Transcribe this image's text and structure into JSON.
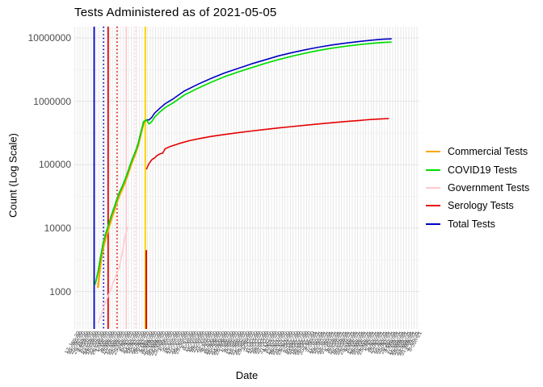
{
  "title": "Tests Administered as of 2021-05-05",
  "y_axis": {
    "label": "Count (Log Scale)",
    "tick_labels": [
      "10000000",
      "1000000",
      "100000",
      "10000",
      "1000"
    ],
    "tick_values": [
      10000000,
      1000000,
      100000,
      10000,
      1000
    ]
  },
  "x_axis": {
    "label": "Date",
    "start_date": "2020-01-17",
    "step_days": 4,
    "tick_count": 128,
    "label_format": "d-Mon-yy"
  },
  "legend": {
    "items": [
      {
        "label": "Commercial Tests",
        "color": "#ffa500",
        "key": "commercial-tests"
      },
      {
        "label": "COVID19 Tests",
        "color": "#00dd00",
        "key": "covid19-tests"
      },
      {
        "label": "Government Tests",
        "color": "#ffc8cf",
        "key": "government-tests"
      },
      {
        "label": "Serology Tests",
        "color": "#e60000",
        "key": "serology-tests"
      },
      {
        "label": "Total Tests",
        "color": "#0000c3",
        "key": "total-tests"
      }
    ]
  },
  "chart_data": {
    "type": "line",
    "title": "Tests Administered as of 2021-05-05",
    "xlabel": "Date",
    "ylabel": "Count (Log Scale)",
    "y_scale": "log10",
    "ylim": [
      260,
      15000000
    ],
    "grid": "on",
    "legend_position": "right",
    "y_major_breaks": [
      10000000,
      1000000,
      100000,
      10000,
      1000
    ],
    "series": [
      {
        "name": "Commercial Tests",
        "color": "#ffa500",
        "width": 2.4,
        "points": [
          [
            8,
            1150
          ],
          [
            9,
            2800
          ],
          [
            10,
            5000
          ],
          [
            11,
            7200
          ],
          [
            12,
            10000
          ],
          [
            13,
            14000
          ],
          [
            14,
            18500
          ],
          [
            15,
            25000
          ],
          [
            16,
            33000
          ],
          [
            17,
            41000
          ],
          [
            18,
            52000
          ],
          [
            19,
            68000
          ],
          [
            20,
            92000
          ],
          [
            21,
            120000
          ],
          [
            22,
            152000
          ],
          [
            23,
            205000
          ],
          [
            24,
            310000
          ],
          [
            25,
            460000
          ],
          [
            26,
            500000
          ]
        ]
      },
      {
        "name": "Total Tests",
        "color": "#0000c3",
        "width": 1.6,
        "points": [
          [
            7,
            1300
          ],
          [
            8,
            2000
          ],
          [
            9,
            3500
          ],
          [
            10,
            6000
          ],
          [
            11,
            8500
          ],
          [
            12,
            11500
          ],
          [
            13,
            16000
          ],
          [
            14,
            21000
          ],
          [
            15,
            28000
          ],
          [
            16,
            37000
          ],
          [
            17,
            45000
          ],
          [
            18,
            57000
          ],
          [
            19,
            75000
          ],
          [
            20,
            100000
          ],
          [
            21,
            130000
          ],
          [
            22,
            165000
          ],
          [
            23,
            220000
          ],
          [
            24,
            330000
          ],
          [
            25,
            480000
          ],
          [
            26,
            510000
          ],
          [
            27,
            510000
          ],
          [
            28,
            560000
          ],
          [
            29,
            650000
          ],
          [
            31,
            780000
          ],
          [
            33,
            920000
          ],
          [
            36,
            1100000
          ],
          [
            40,
            1450000
          ],
          [
            45,
            1850000
          ],
          [
            50,
            2300000
          ],
          [
            55,
            2800000
          ],
          [
            60,
            3300000
          ],
          [
            65,
            3900000
          ],
          [
            70,
            4500000
          ],
          [
            75,
            5200000
          ],
          [
            80,
            5850000
          ],
          [
            85,
            6500000
          ],
          [
            90,
            7150000
          ],
          [
            95,
            7750000
          ],
          [
            100,
            8300000
          ],
          [
            105,
            8800000
          ],
          [
            110,
            9250000
          ],
          [
            114,
            9550000
          ],
          [
            117,
            9650000
          ]
        ]
      },
      {
        "name": "COVID19 Tests",
        "color": "#00dd00",
        "width": 1.7,
        "points": [
          [
            7,
            1300
          ],
          [
            8,
            2000
          ],
          [
            9,
            3500
          ],
          [
            10,
            6000
          ],
          [
            11,
            8500
          ],
          [
            12,
            11500
          ],
          [
            13,
            16000
          ],
          [
            14,
            21000
          ],
          [
            15,
            28000
          ],
          [
            16,
            37000
          ],
          [
            17,
            45000
          ],
          [
            18,
            57000
          ],
          [
            19,
            75000
          ],
          [
            20,
            100000
          ],
          [
            21,
            130000
          ],
          [
            22,
            165000
          ],
          [
            23,
            220000
          ],
          [
            24,
            330000
          ],
          [
            25,
            480000
          ],
          [
            26,
            510000
          ],
          [
            27,
            440000
          ],
          [
            28,
            480000
          ],
          [
            29,
            560000
          ],
          [
            31,
            680000
          ],
          [
            33,
            800000
          ],
          [
            36,
            950000
          ],
          [
            40,
            1250000
          ],
          [
            45,
            1600000
          ],
          [
            50,
            2000000
          ],
          [
            55,
            2450000
          ],
          [
            60,
            2900000
          ],
          [
            65,
            3400000
          ],
          [
            70,
            3950000
          ],
          [
            75,
            4550000
          ],
          [
            80,
            5150000
          ],
          [
            85,
            5750000
          ],
          [
            90,
            6350000
          ],
          [
            95,
            6900000
          ],
          [
            100,
            7400000
          ],
          [
            105,
            7850000
          ],
          [
            110,
            8250000
          ],
          [
            114,
            8500000
          ],
          [
            117,
            8600000
          ]
        ]
      },
      {
        "name": "Government Tests",
        "color": "#ffc8cf",
        "width": 1.5,
        "points": [
          [
            8,
            320
          ],
          [
            9,
            400
          ],
          [
            10,
            550
          ],
          [
            11,
            700
          ],
          [
            12,
            900
          ],
          [
            13,
            1150
          ],
          [
            14,
            1500
          ],
          [
            15,
            1900
          ],
          [
            16,
            2500
          ],
          [
            17,
            4000
          ],
          [
            18,
            7000
          ],
          [
            19,
            10500
          ]
        ]
      },
      {
        "name": "Serology Tests",
        "color": "#e60000",
        "width": 1.6,
        "points": [
          [
            26,
            85000
          ],
          [
            27,
            105000
          ],
          [
            28,
            120000
          ],
          [
            29,
            128000
          ],
          [
            30,
            140000
          ],
          [
            31,
            148000
          ],
          [
            32,
            152000
          ],
          [
            33,
            180000
          ],
          [
            35,
            195000
          ],
          [
            38,
            215000
          ],
          [
            42,
            240000
          ],
          [
            46,
            260000
          ],
          [
            50,
            280000
          ],
          [
            55,
            300000
          ],
          [
            60,
            320000
          ],
          [
            65,
            340000
          ],
          [
            70,
            360000
          ],
          [
            75,
            380000
          ],
          [
            80,
            400000
          ],
          [
            85,
            420000
          ],
          [
            90,
            440000
          ],
          [
            95,
            460000
          ],
          [
            100,
            480000
          ],
          [
            105,
            500000
          ],
          [
            108,
            512000
          ],
          [
            112,
            525000
          ],
          [
            116,
            535000
          ]
        ]
      }
    ],
    "event_lines": [
      {
        "name": "event-blue-solid",
        "x_index": 6.6,
        "color": "#0000c3",
        "style": "solid",
        "width": 1.8
      },
      {
        "name": "event-blue-dotted",
        "x_index": 10.1,
        "color": "#0000c3",
        "style": "dotted",
        "width": 1.6
      },
      {
        "name": "event-red-solid",
        "x_index": 11.8,
        "color": "#e60000",
        "style": "solid",
        "width": 1.7
      },
      {
        "name": "event-red-dotted",
        "x_index": 15.1,
        "color": "#e60000",
        "style": "dotted",
        "width": 1.6
      },
      {
        "name": "event-pink-solid",
        "x_index": 18.5,
        "color": "#ffc8cf",
        "style": "solid",
        "width": 1.7
      },
      {
        "name": "event-pink-dotted",
        "x_index": 22.1,
        "color": "#ffc8cf",
        "style": "dotted",
        "width": 1.6
      },
      {
        "name": "event-yellow-solid",
        "x_index": 25.6,
        "color": "#ffd500",
        "style": "solid",
        "width": 2.0
      },
      {
        "name": "event-red-segment",
        "x_index": 25.95,
        "color": "#e60000",
        "style": "solid",
        "width": 1.8,
        "value_from": 262,
        "value_to": 4500
      }
    ]
  },
  "colors": {
    "background": "#ffffff",
    "grid_major": "#e4e4e4",
    "grid_minor": "#f1f1f1",
    "axis_text": "#4d4d4d",
    "text": "#000000"
  }
}
